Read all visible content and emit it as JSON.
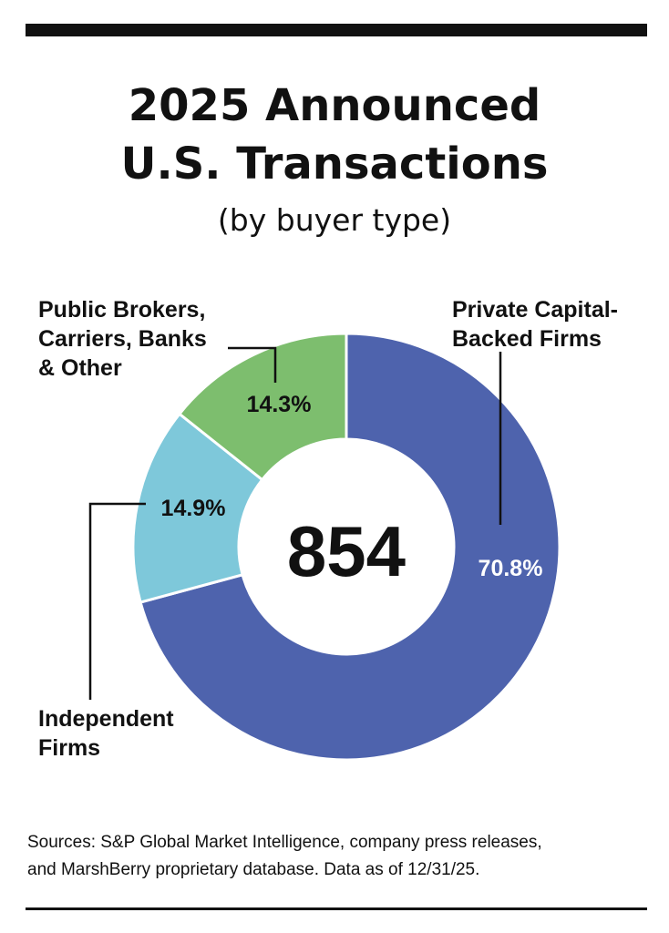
{
  "title": {
    "line1": "2025 Announced",
    "line2": "U.S. Transactions",
    "subtitle": "(by buyer type)"
  },
  "chart_data": {
    "type": "pie",
    "variant": "donut",
    "total_label": "854",
    "slices": [
      {
        "name": "Private Capital-Backed Firms",
        "label_lines": [
          "Private Capital-",
          "Backed Firms"
        ],
        "value": 70.8,
        "value_label": "70.8%",
        "color": "#4e63ad",
        "value_color": "#ffffff"
      },
      {
        "name": "Independent Firms",
        "label_lines": [
          "Independent",
          "Firms"
        ],
        "value": 14.9,
        "value_label": "14.9%",
        "color": "#7ec8da",
        "value_color": "#111111"
      },
      {
        "name": "Public Brokers, Carriers, Banks & Other",
        "label_lines": [
          "Public Brokers,",
          "Carriers, Banks",
          "& Other"
        ],
        "value": 14.3,
        "value_label": "14.3%",
        "color": "#7dbe6e",
        "value_color": "#111111"
      }
    ]
  },
  "source": {
    "line1": "Sources: S&P Global Market Intelligence, company press releases,",
    "line2": "and MarshBerry proprietary database. Data as of 12/31/25."
  }
}
